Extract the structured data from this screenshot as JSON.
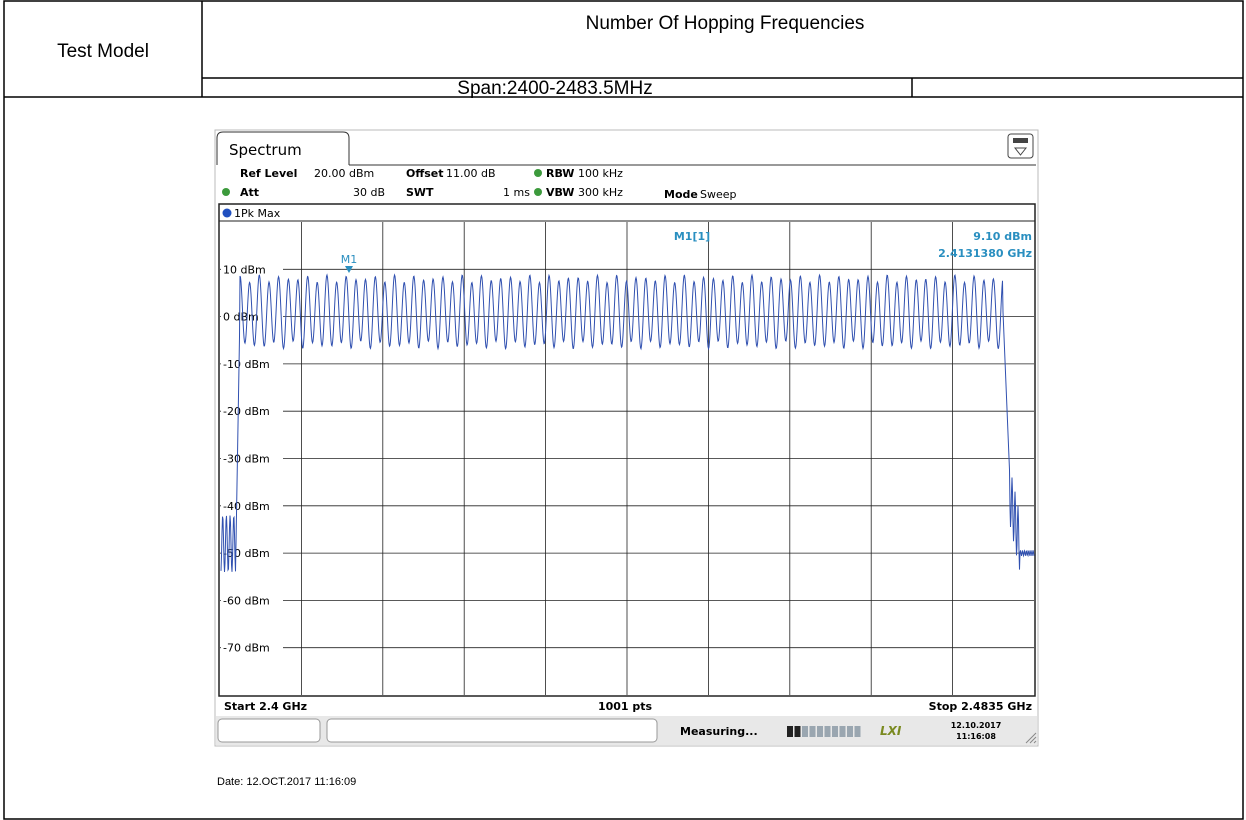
{
  "table": {
    "model_label": "Test Model",
    "title": "Number Of Hopping Frequencies",
    "span": "Span:2400-2483.5MHz"
  },
  "screen": {
    "tab": "Spectrum",
    "ref_level_label": "Ref Level",
    "ref_level": "20.00 dBm",
    "offset_label": "Offset",
    "offset": "11.00 dB",
    "rbw_label": "RBW",
    "rbw": "100 kHz",
    "att_label": "Att",
    "att": "30 dB",
    "swt_label": "SWT",
    "swt": "1 ms",
    "vbw_label": "VBW",
    "vbw": "300 kHz",
    "mode_label": "Mode",
    "mode": "Sweep",
    "trace": "1Pk Max",
    "marker": "M1",
    "marker_readout": "M1[1]",
    "marker_level": "9.10 dBm",
    "marker_freq": "2.4131380 GHz",
    "y_labels": [
      "10 dBm",
      "0 dBm",
      "-10 dBm",
      "-20 dBm",
      "-30 dBm",
      "-40 dBm",
      "-50 dBm",
      "-60 dBm",
      "-70 dBm"
    ],
    "start": "Start 2.4 GHz",
    "points": "1001 pts",
    "stop": "Stop 2.4835 GHz",
    "status": "Measuring...",
    "lxi": "LXI",
    "status_date": "12.10.2017",
    "status_time": "11:16:08"
  },
  "footer": "Date: 12.OCT.2017 11:16:09"
}
